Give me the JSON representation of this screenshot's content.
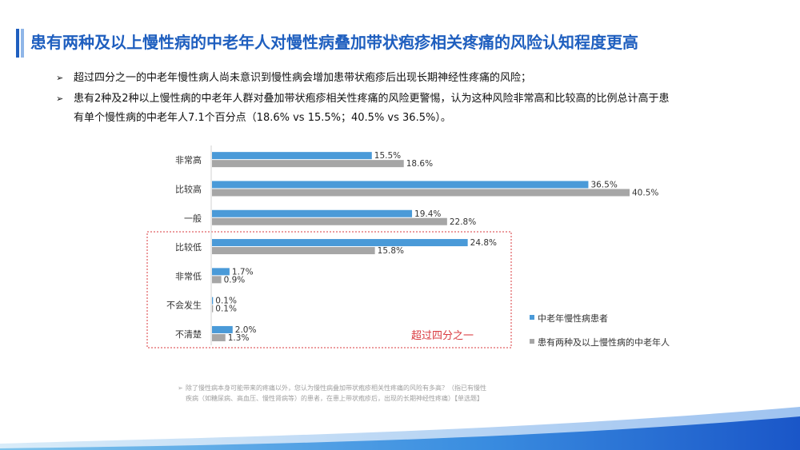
{
  "title": "患有两种及以上慢性病的中老年人对慢性病叠加带状疱疹相关疼痛的风险认知程度更高",
  "bullets": {
    "arrow": "➢",
    "b1": "超过四分之一的中老年慢性病人尚未意识到慢性病会增加患带状疱疹后出现长期神经性疼痛的风险；",
    "b2_line1": "患有2种及2种以上慢性病的中老年人群对叠加带状疱疹相关性疼痛的风险更警惕，认为这种风险非常高和比较高的比例总计高于患",
    "b2_line2": "有单个慢性病的中老年人7.1个百分点（18.6% vs 15.5%；40.5% vs 36.5%）。"
  },
  "annotation": "超过四分之一",
  "footnote": {
    "arrow": "➢",
    "line1": "除了慢性病本身可能带来的疼痛以外，您认为慢性病叠加带状疱疹相关性疼痛的风险有多高？（指已有慢性",
    "line2": "疾病（如糖尿病、高血压、慢性肾病等）的患者，在患上带状疱疹后，出现的长期神经性疼痛）【单选题】"
  },
  "colors": {
    "title": "#1f5fbf",
    "series1": "#4a9ad8",
    "series2": "#a6a6a6",
    "highlight_box": "#d9393e",
    "annotation": "#d9393e"
  },
  "chart_data": {
    "type": "bar",
    "orientation": "horizontal",
    "categories": [
      "非常高",
      "比较高",
      "一般",
      "比较低",
      "非常低",
      "不会发生",
      "不清楚"
    ],
    "series": [
      {
        "name": "中老年慢性病患者",
        "values": [
          15.5,
          36.5,
          19.4,
          24.8,
          1.7,
          0.1,
          2.0
        ],
        "labels": [
          "15.5%",
          "36.5%",
          "19.4%",
          "24.8%",
          "1.7%",
          "0.1%",
          "2.0%"
        ]
      },
      {
        "name": "患有两种及以上慢性病的中老年人",
        "values": [
          18.6,
          40.5,
          22.8,
          15.8,
          0.9,
          0.1,
          1.3
        ],
        "labels": [
          "18.6%",
          "40.5%",
          "22.8%",
          "15.8%",
          "0.9%",
          "0.1%",
          "1.3%"
        ]
      }
    ],
    "xlim": [
      0,
      45
    ],
    "legend_position": "right",
    "highlighted_categories": [
      "比较低",
      "非常低",
      "不会发生",
      "不清楚"
    ]
  }
}
